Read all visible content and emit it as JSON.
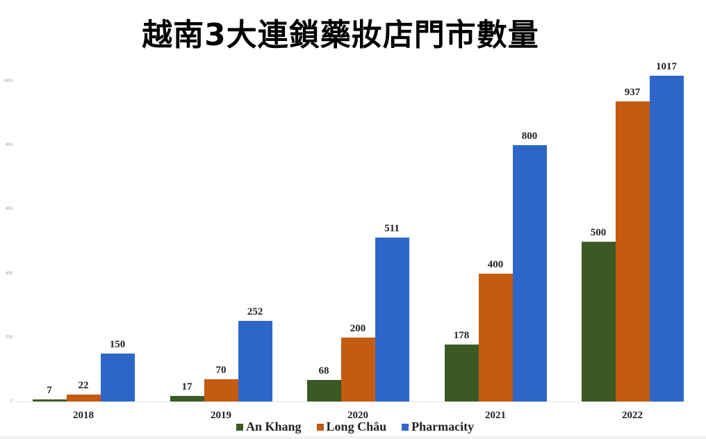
{
  "title": "越南3大連鎖藥妝店門市數量",
  "chart_data": {
    "type": "bar",
    "title": "越南3大連鎖藥妝店門市數量",
    "xlabel": "",
    "ylabel": "",
    "categories": [
      "2018",
      "2019",
      "2020",
      "2021",
      "2022"
    ],
    "series": [
      {
        "name": "An Khang",
        "color": "#3b5a23",
        "values": [
          7,
          17,
          68,
          178,
          500
        ]
      },
      {
        "name": "Long Châu",
        "color": "#c55a11",
        "values": [
          22,
          70,
          200,
          400,
          937
        ]
      },
      {
        "name": "Pharmacity",
        "color": "#2d66c8",
        "values": [
          150,
          252,
          511,
          800,
          1017
        ]
      }
    ],
    "yticks": [
      "0",
      "200",
      "400",
      "600",
      "800",
      "1000"
    ],
    "ylim": [
      0,
      1000
    ],
    "grid": false,
    "data_labels": true,
    "legend_position": "bottom"
  },
  "legend": [
    {
      "label": "An Khang",
      "color": "#3b5a23"
    },
    {
      "label": "Long Châu",
      "color": "#c55a11"
    },
    {
      "label": "Pharmacity",
      "color": "#2d66c8"
    }
  ]
}
